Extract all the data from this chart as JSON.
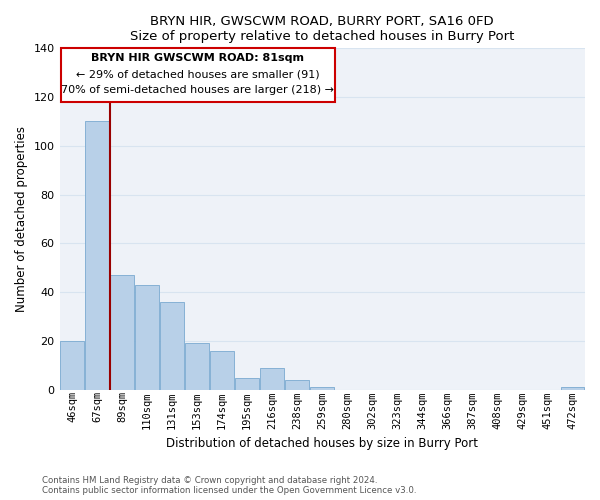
{
  "title": "BRYN HIR, GWSCWM ROAD, BURRY PORT, SA16 0FD",
  "subtitle": "Size of property relative to detached houses in Burry Port",
  "xlabel": "Distribution of detached houses by size in Burry Port",
  "ylabel": "Number of detached properties",
  "bar_color": "#b8d0e8",
  "bar_edge_color": "#7aaad0",
  "categories": [
    "46sqm",
    "67sqm",
    "89sqm",
    "110sqm",
    "131sqm",
    "153sqm",
    "174sqm",
    "195sqm",
    "216sqm",
    "238sqm",
    "259sqm",
    "280sqm",
    "302sqm",
    "323sqm",
    "344sqm",
    "366sqm",
    "387sqm",
    "408sqm",
    "429sqm",
    "451sqm",
    "472sqm"
  ],
  "values": [
    20,
    110,
    47,
    43,
    36,
    19,
    16,
    5,
    9,
    4,
    1,
    0,
    0,
    0,
    0,
    0,
    0,
    0,
    0,
    0,
    1
  ],
  "ylim": [
    0,
    140
  ],
  "yticks": [
    0,
    20,
    40,
    60,
    80,
    100,
    120,
    140
  ],
  "vline_index": 1.5,
  "vline_color": "#990000",
  "annotation_title": "BRYN HIR GWSCWM ROAD: 81sqm",
  "annotation_line1": "← 29% of detached houses are smaller (91)",
  "annotation_line2": "70% of semi-detached houses are larger (218) →",
  "footer_line1": "Contains HM Land Registry data © Crown copyright and database right 2024.",
  "footer_line2": "Contains public sector information licensed under the Open Government Licence v3.0.",
  "grid_color": "#d8e4f0",
  "background_color": "#eef2f8"
}
